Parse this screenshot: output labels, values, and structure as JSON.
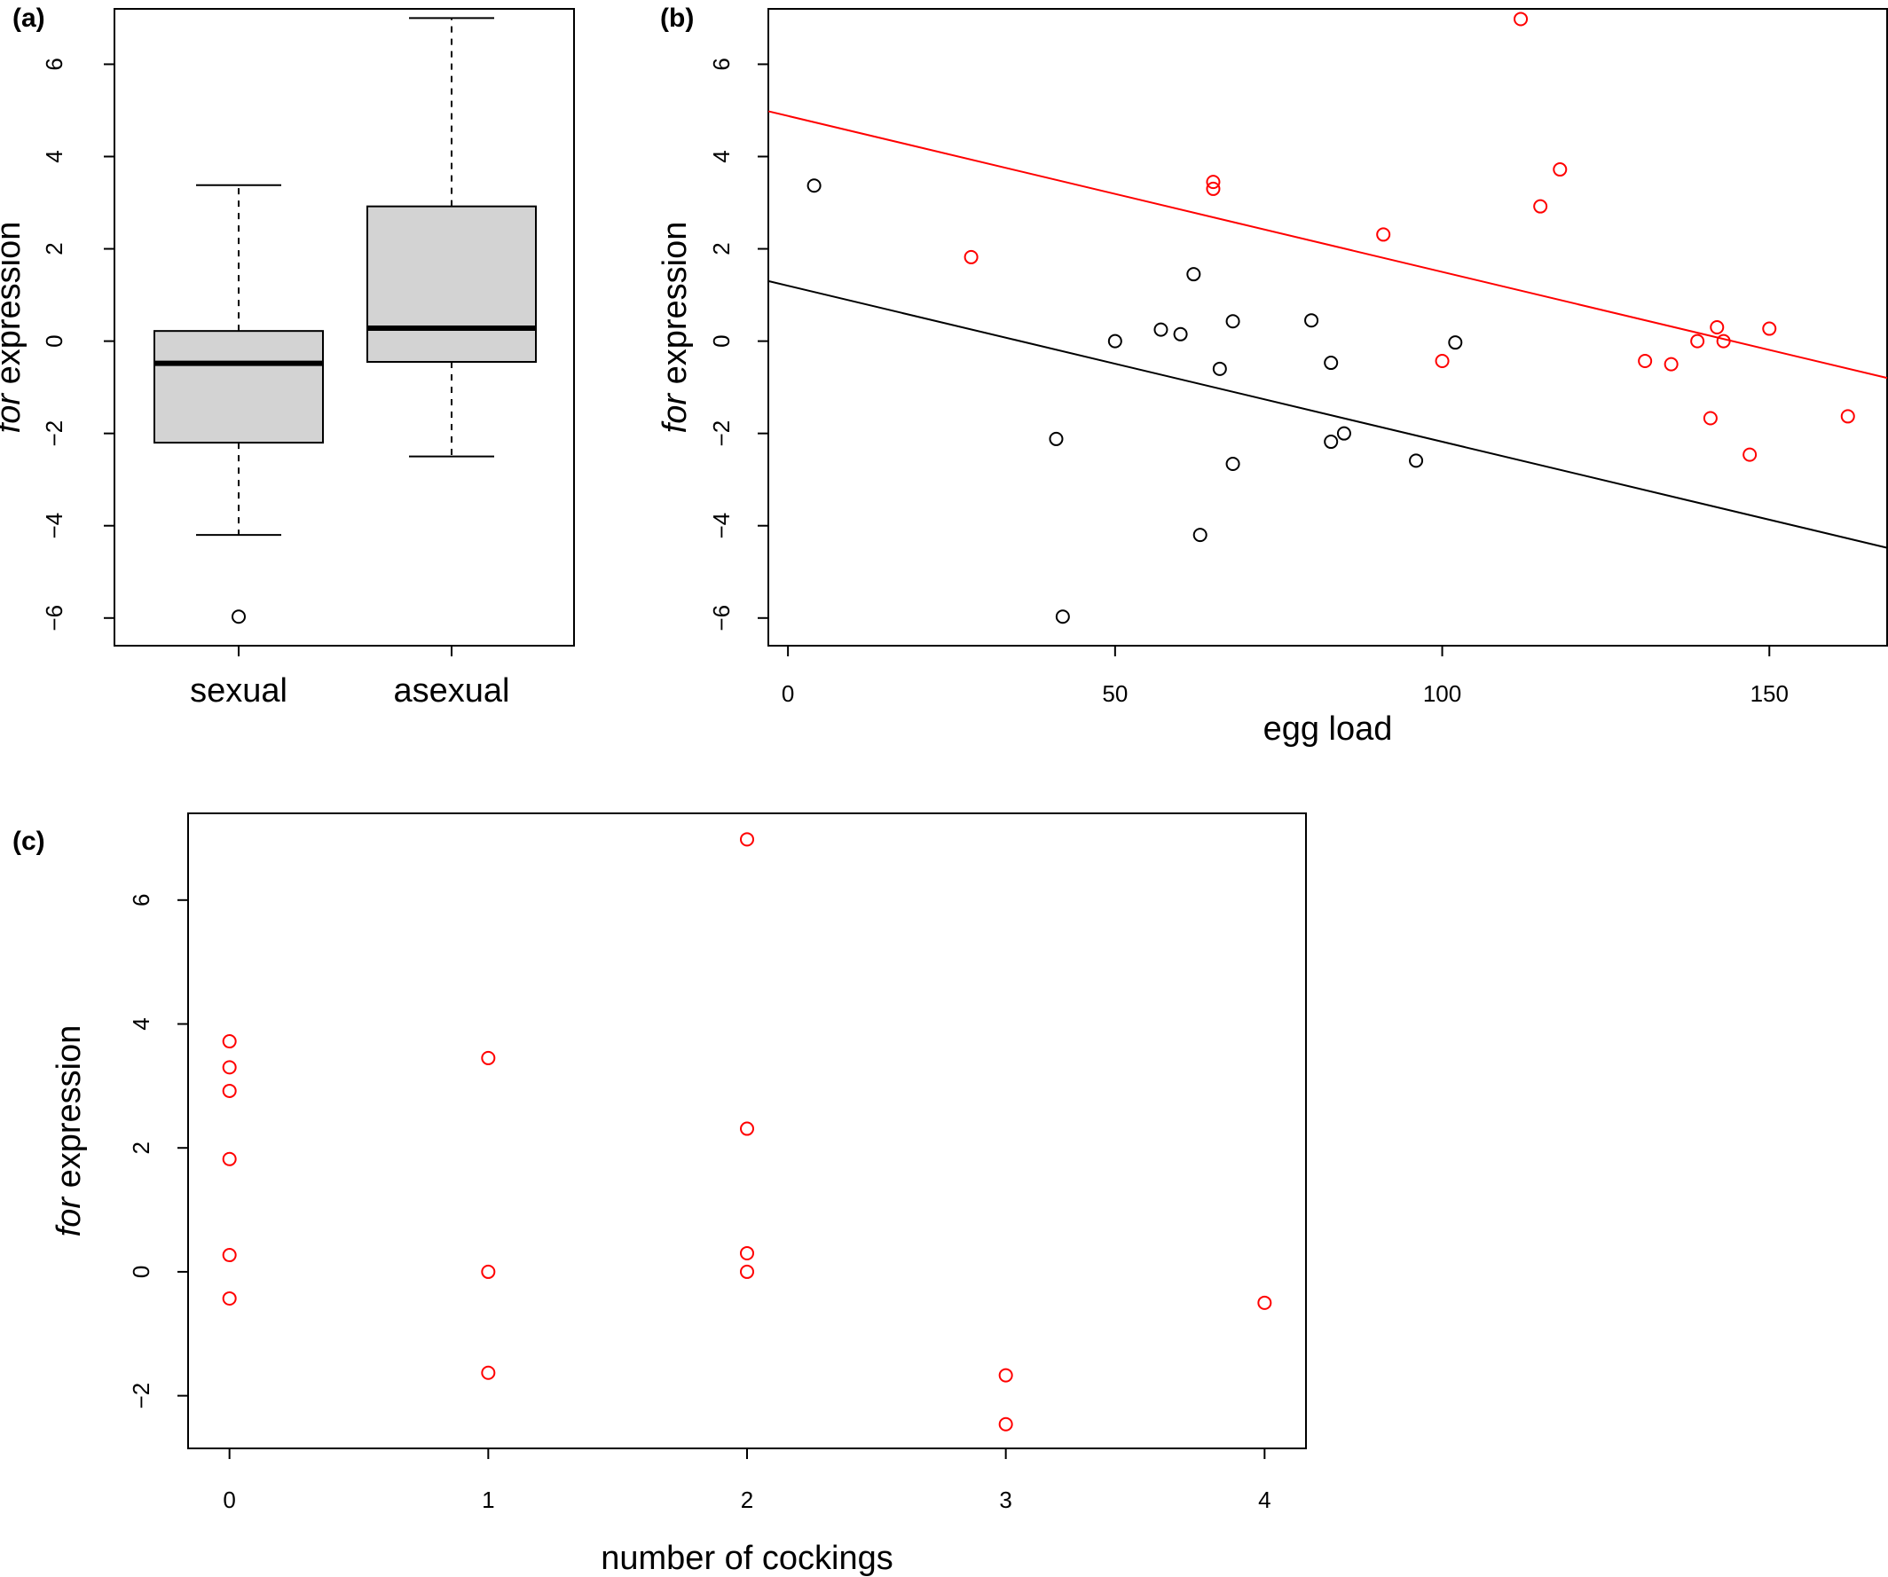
{
  "chart_data": [
    {
      "id": "a",
      "type": "box",
      "panel_label": "(a)",
      "ylabel": "for expression",
      "ylabel_italic": "for",
      "ylabel_rest": " expression",
      "ylim": [
        -6.6,
        7.2
      ],
      "yticks": [
        -6,
        -4,
        -2,
        0,
        2,
        4,
        6
      ],
      "categories": [
        "sexual",
        "asexual"
      ],
      "boxes": [
        {
          "category": "sexual",
          "whisker_low": -4.2,
          "q1": -2.2,
          "median": -0.48,
          "q3": 0.22,
          "whisker_high": 3.38,
          "outliers": [
            -5.97
          ]
        },
        {
          "category": "asexual",
          "whisker_low": -2.5,
          "q1": -0.45,
          "median": 0.28,
          "q3": 2.92,
          "whisker_high": 7.0,
          "outliers": []
        }
      ],
      "colors": {
        "box_fill": "#d3d3d3",
        "stroke": "#000000"
      }
    },
    {
      "id": "b",
      "type": "scatter",
      "panel_label": "(b)",
      "xlabel": "egg load",
      "ylabel": "for expression",
      "ylabel_italic": "for",
      "ylabel_rest": " expression",
      "xlim": [
        -3,
        168
      ],
      "ylim": [
        -6.6,
        7.2
      ],
      "xticks": [
        0,
        50,
        100,
        150
      ],
      "yticks": [
        -6,
        -4,
        -2,
        0,
        2,
        4,
        6
      ],
      "series": [
        {
          "color": "#000000",
          "points": [
            [
              4,
              3.37
            ],
            [
              41,
              -2.12
            ],
            [
              42,
              -5.97
            ],
            [
              50,
              0.0
            ],
            [
              57,
              0.25
            ],
            [
              60,
              0.15
            ],
            [
              62,
              1.45
            ],
            [
              63,
              -4.2
            ],
            [
              66,
              -0.6
            ],
            [
              68,
              0.43
            ],
            [
              68,
              -2.66
            ],
            [
              80,
              0.45
            ],
            [
              83,
              -0.47
            ],
            [
              83,
              -2.18
            ],
            [
              85,
              -2.0
            ],
            [
              96,
              -2.59
            ],
            [
              102,
              -0.03
            ]
          ],
          "fit_line": {
            "intercept": 1.2,
            "slope": -0.0338
          }
        },
        {
          "color": "#ff0000",
          "points": [
            [
              28,
              1.82
            ],
            [
              65,
              3.45
            ],
            [
              65,
              3.3
            ],
            [
              91,
              2.31
            ],
            [
              100,
              -0.43
            ],
            [
              112,
              6.98
            ],
            [
              115,
              2.92
            ],
            [
              118,
              3.72
            ],
            [
              131,
              -0.43
            ],
            [
              135,
              -0.5
            ],
            [
              139,
              0.0
            ],
            [
              141,
              -1.67
            ],
            [
              142,
              0.3
            ],
            [
              143,
              0.0
            ],
            [
              147,
              -2.46
            ],
            [
              150,
              0.27
            ],
            [
              162,
              -1.63
            ]
          ],
          "fit_line": {
            "intercept": 4.88,
            "slope": -0.0338
          }
        }
      ]
    },
    {
      "id": "c",
      "type": "scatter",
      "panel_label": "(c)",
      "xlabel": "number of cockings",
      "ylabel": "for expression",
      "ylabel_italic": "for",
      "ylabel_rest": " expression",
      "xlim": [
        -0.16,
        4.16
      ],
      "ylim": [
        -2.85,
        7.4
      ],
      "xticks": [
        0,
        1,
        2,
        3,
        4
      ],
      "yticks": [
        -2,
        0,
        2,
        4,
        6
      ],
      "series": [
        {
          "color": "#ff0000",
          "points": [
            [
              0,
              3.72
            ],
            [
              0,
              3.3
            ],
            [
              0,
              2.92
            ],
            [
              0,
              1.82
            ],
            [
              0,
              0.27
            ],
            [
              0,
              -0.43
            ],
            [
              1,
              3.45
            ],
            [
              1,
              0.0
            ],
            [
              1,
              -1.63
            ],
            [
              2,
              6.98
            ],
            [
              2,
              2.31
            ],
            [
              2,
              0.3
            ],
            [
              2,
              0.0
            ],
            [
              3,
              -1.67
            ],
            [
              3,
              -2.46
            ],
            [
              4,
              -0.5
            ]
          ]
        }
      ]
    }
  ]
}
